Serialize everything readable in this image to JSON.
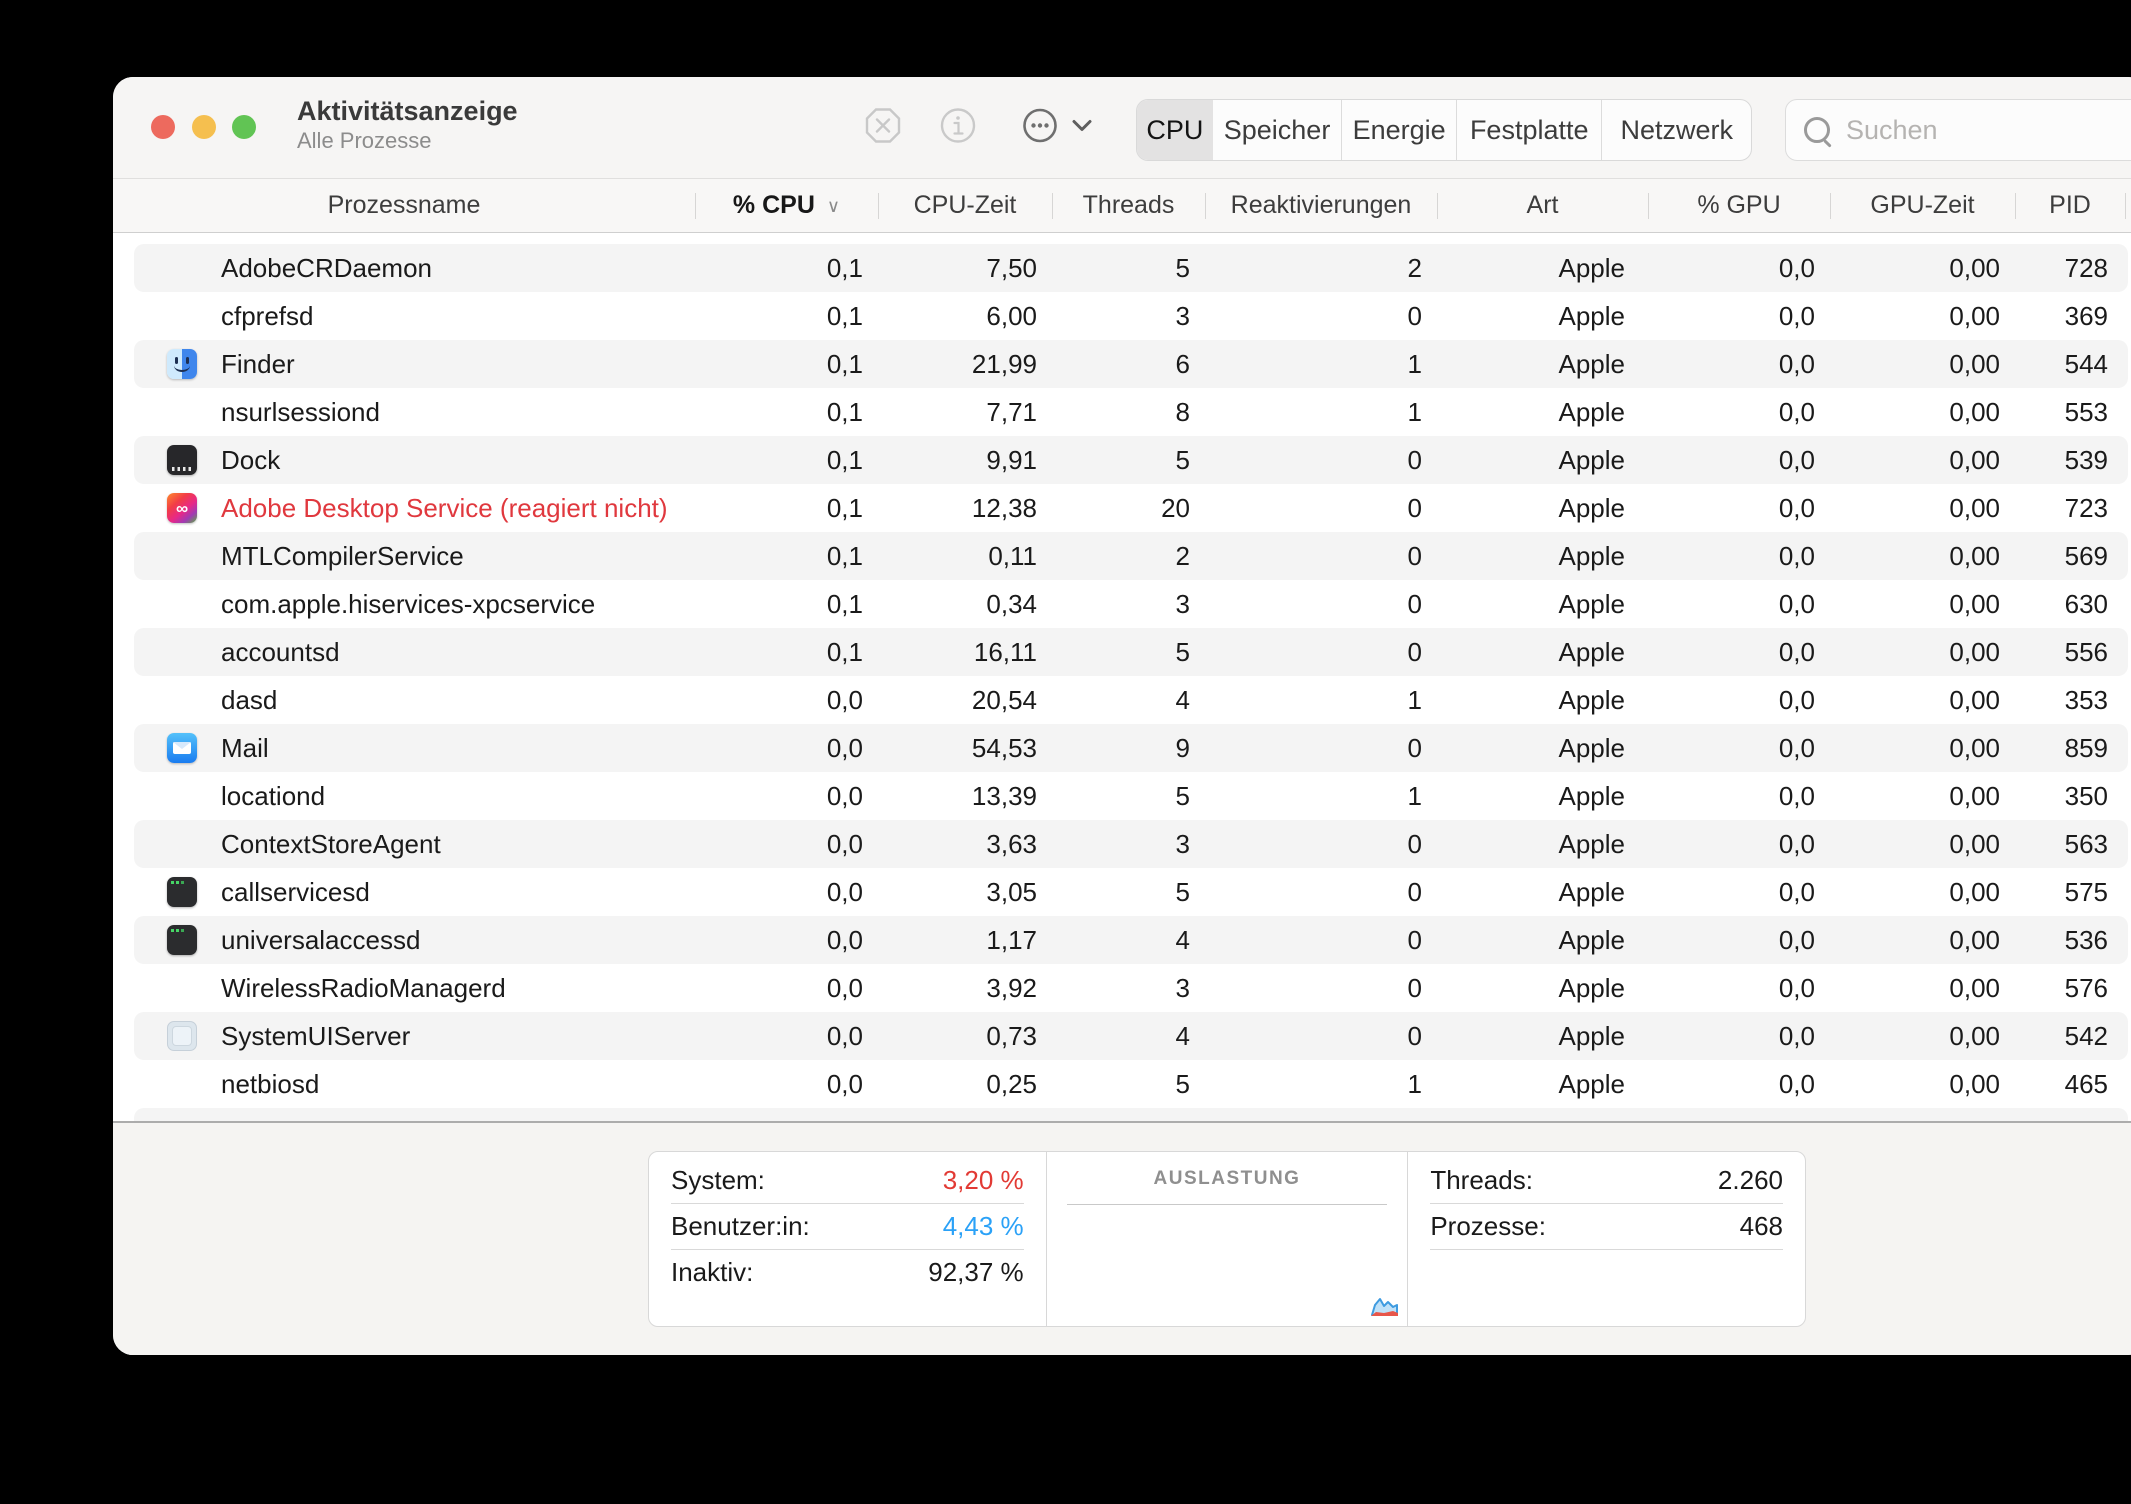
{
  "window": {
    "title": "Aktivitätsanzeige",
    "subtitle": "Alle Prozesse"
  },
  "toolbar": {
    "stop_icon": "octagon-x",
    "info_icon": "circle-i",
    "more_icon": "circle-ellipsis",
    "more_chevron_icon": "chevron-down",
    "segments": [
      "CPU",
      "Speicher",
      "Energie",
      "Festplatte",
      "Netzwerk"
    ],
    "selected_segment": "CPU",
    "search_icon": "magnifier",
    "search_placeholder": "Suchen",
    "search_value": ""
  },
  "table": {
    "columns": [
      "Prozessname",
      "% CPU",
      "CPU-Zeit",
      "Threads",
      "Reaktivierungen",
      "Art",
      "% GPU",
      "GPU-Zeit",
      "PID"
    ],
    "sort_column": "% CPU",
    "sort_direction": "descending",
    "rows": [
      {
        "name": "AdobeCRDaemon",
        "icon": "",
        "cpu": "0,1",
        "cpu_time": "7,50",
        "threads": "5",
        "wakeups": "2",
        "art": "Apple",
        "gpu": "0,0",
        "gpu_time": "0,00",
        "pid": "728",
        "not_responding": false
      },
      {
        "name": "cfprefsd",
        "icon": "",
        "cpu": "0,1",
        "cpu_time": "6,00",
        "threads": "3",
        "wakeups": "0",
        "art": "Apple",
        "gpu": "0,0",
        "gpu_time": "0,00",
        "pid": "369",
        "not_responding": false
      },
      {
        "name": "Finder",
        "icon": "finder",
        "cpu": "0,1",
        "cpu_time": "21,99",
        "threads": "6",
        "wakeups": "1",
        "art": "Apple",
        "gpu": "0,0",
        "gpu_time": "0,00",
        "pid": "544",
        "not_responding": false
      },
      {
        "name": "nsurlsessiond",
        "icon": "",
        "cpu": "0,1",
        "cpu_time": "7,71",
        "threads": "8",
        "wakeups": "1",
        "art": "Apple",
        "gpu": "0,0",
        "gpu_time": "0,00",
        "pid": "553",
        "not_responding": false
      },
      {
        "name": "Dock",
        "icon": "dock",
        "cpu": "0,1",
        "cpu_time": "9,91",
        "threads": "5",
        "wakeups": "0",
        "art": "Apple",
        "gpu": "0,0",
        "gpu_time": "0,00",
        "pid": "539",
        "not_responding": false
      },
      {
        "name": "Adobe Desktop Service (reagiert nicht)",
        "icon": "adobe-cc",
        "cpu": "0,1",
        "cpu_time": "12,38",
        "threads": "20",
        "wakeups": "0",
        "art": "Apple",
        "gpu": "0,0",
        "gpu_time": "0,00",
        "pid": "723",
        "not_responding": true
      },
      {
        "name": "MTLCompilerService",
        "icon": "",
        "cpu": "0,1",
        "cpu_time": "0,11",
        "threads": "2",
        "wakeups": "0",
        "art": "Apple",
        "gpu": "0,0",
        "gpu_time": "0,00",
        "pid": "569",
        "not_responding": false
      },
      {
        "name": "com.apple.hiservices-xpcservice",
        "icon": "",
        "cpu": "0,1",
        "cpu_time": "0,34",
        "threads": "3",
        "wakeups": "0",
        "art": "Apple",
        "gpu": "0,0",
        "gpu_time": "0,00",
        "pid": "630",
        "not_responding": false
      },
      {
        "name": "accountsd",
        "icon": "",
        "cpu": "0,1",
        "cpu_time": "16,11",
        "threads": "5",
        "wakeups": "0",
        "art": "Apple",
        "gpu": "0,0",
        "gpu_time": "0,00",
        "pid": "556",
        "not_responding": false
      },
      {
        "name": "dasd",
        "icon": "",
        "cpu": "0,0",
        "cpu_time": "20,54",
        "threads": "4",
        "wakeups": "1",
        "art": "Apple",
        "gpu": "0,0",
        "gpu_time": "0,00",
        "pid": "353",
        "not_responding": false
      },
      {
        "name": "Mail",
        "icon": "mail",
        "cpu": "0,0",
        "cpu_time": "54,53",
        "threads": "9",
        "wakeups": "0",
        "art": "Apple",
        "gpu": "0,0",
        "gpu_time": "0,00",
        "pid": "859",
        "not_responding": false
      },
      {
        "name": "locationd",
        "icon": "",
        "cpu": "0,0",
        "cpu_time": "13,39",
        "threads": "5",
        "wakeups": "1",
        "art": "Apple",
        "gpu": "0,0",
        "gpu_time": "0,00",
        "pid": "350",
        "not_responding": false
      },
      {
        "name": "ContextStoreAgent",
        "icon": "",
        "cpu": "0,0",
        "cpu_time": "3,63",
        "threads": "3",
        "wakeups": "0",
        "art": "Apple",
        "gpu": "0,0",
        "gpu_time": "0,00",
        "pid": "563",
        "not_responding": false
      },
      {
        "name": "callservicesd",
        "icon": "terminal",
        "cpu": "0,0",
        "cpu_time": "3,05",
        "threads": "5",
        "wakeups": "0",
        "art": "Apple",
        "gpu": "0,0",
        "gpu_time": "0,00",
        "pid": "575",
        "not_responding": false
      },
      {
        "name": "universalaccessd",
        "icon": "terminal",
        "cpu": "0,0",
        "cpu_time": "1,17",
        "threads": "4",
        "wakeups": "0",
        "art": "Apple",
        "gpu": "0,0",
        "gpu_time": "0,00",
        "pid": "536",
        "not_responding": false
      },
      {
        "name": "WirelessRadioManagerd",
        "icon": "",
        "cpu": "0,0",
        "cpu_time": "3,92",
        "threads": "3",
        "wakeups": "0",
        "art": "Apple",
        "gpu": "0,0",
        "gpu_time": "0,00",
        "pid": "576",
        "not_responding": false
      },
      {
        "name": "SystemUIServer",
        "icon": "systemui",
        "cpu": "0,0",
        "cpu_time": "0,73",
        "threads": "4",
        "wakeups": "0",
        "art": "Apple",
        "gpu": "0,0",
        "gpu_time": "0,00",
        "pid": "542",
        "not_responding": false
      },
      {
        "name": "netbiosd",
        "icon": "",
        "cpu": "0,0",
        "cpu_time": "0,25",
        "threads": "5",
        "wakeups": "1",
        "art": "Apple",
        "gpu": "0,0",
        "gpu_time": "0,00",
        "pid": "465",
        "not_responding": false
      }
    ]
  },
  "footer": {
    "cpu_load": {
      "system_label": "System:",
      "system_value": "3,20 %",
      "user_label": "Benutzer:in:",
      "user_value": "4,43 %",
      "idle_label": "Inaktiv:",
      "idle_value": "92,37 %"
    },
    "load_panel_title": "AUSLASTUNG",
    "counters": {
      "threads_label": "Threads:",
      "threads_value": "2.260",
      "processes_label": "Prozesse:",
      "processes_value": "468"
    }
  },
  "colors": {
    "system_red": "#e23a34",
    "user_blue": "#2aa1f7",
    "not_responding_red": "#e0383e",
    "traffic_red": "#ed6a5e",
    "traffic_yellow": "#f5bf4f",
    "traffic_green": "#61c454"
  }
}
